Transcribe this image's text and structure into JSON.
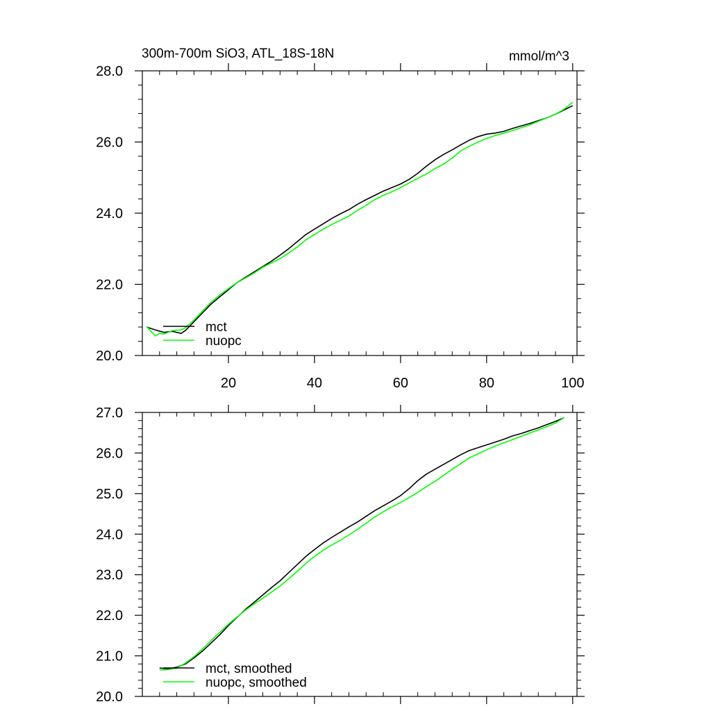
{
  "header": {
    "left_title": "300m-700m SiO3, ATL_18S-18N",
    "right_title": "mmol/m^3"
  },
  "colors": {
    "mct": "#000000",
    "nuopc": "#00ff00",
    "axes": "#000000"
  },
  "chart_data": [
    {
      "type": "line",
      "xlim": [
        0,
        101
      ],
      "ylim": [
        20.0,
        28.0
      ],
      "x_ticks": [
        20,
        40,
        60,
        80,
        100
      ],
      "x_tick_labels": [
        "20",
        "40",
        "60",
        "80",
        "100"
      ],
      "y_ticks": [
        20.0,
        22.0,
        24.0,
        26.0,
        28.0
      ],
      "y_tick_labels": [
        "20.0",
        "22.0",
        "24.0",
        "26.0",
        "28.0"
      ],
      "grid": false,
      "legend_placement": "bottom-left",
      "series": [
        {
          "name": "mct",
          "color": "#000000",
          "x": [
            1,
            3,
            5,
            7,
            9,
            10,
            12,
            14,
            16,
            18,
            20,
            22,
            24,
            26,
            28,
            30,
            32,
            34,
            36,
            38,
            40,
            42,
            44,
            46,
            48,
            50,
            52,
            54,
            56,
            58,
            60,
            62,
            64,
            66,
            68,
            70,
            72,
            74,
            76,
            78,
            80,
            82,
            84,
            86,
            88,
            90,
            92,
            94,
            96,
            98,
            100
          ],
          "y": [
            20.8,
            20.72,
            20.65,
            20.68,
            20.62,
            20.7,
            20.95,
            21.2,
            21.45,
            21.65,
            21.85,
            22.05,
            22.2,
            22.35,
            22.5,
            22.65,
            22.82,
            23.0,
            23.2,
            23.4,
            23.55,
            23.7,
            23.85,
            23.98,
            24.1,
            24.25,
            24.38,
            24.5,
            24.62,
            24.72,
            24.82,
            24.95,
            25.12,
            25.32,
            25.5,
            25.65,
            25.78,
            25.92,
            26.05,
            26.15,
            26.22,
            26.25,
            26.3,
            26.38,
            26.45,
            26.52,
            26.6,
            26.68,
            26.78,
            26.9,
            27.02
          ]
        },
        {
          "name": "nuopc",
          "color": "#00ff00",
          "x": [
            1,
            2,
            3,
            4,
            5,
            7,
            9,
            10,
            12,
            14,
            16,
            18,
            20,
            22,
            24,
            26,
            28,
            30,
            32,
            34,
            36,
            38,
            40,
            42,
            44,
            46,
            48,
            50,
            52,
            54,
            56,
            58,
            60,
            62,
            64,
            66,
            68,
            70,
            72,
            74,
            76,
            78,
            80,
            82,
            84,
            86,
            88,
            90,
            92,
            94,
            96,
            98,
            100
          ],
          "y": [
            20.82,
            20.68,
            20.55,
            20.62,
            20.6,
            20.7,
            20.72,
            20.78,
            21.0,
            21.25,
            21.5,
            21.7,
            21.88,
            22.05,
            22.18,
            22.32,
            22.48,
            22.6,
            22.72,
            22.88,
            23.05,
            23.25,
            23.4,
            23.55,
            23.68,
            23.8,
            23.92,
            24.08,
            24.22,
            24.38,
            24.5,
            24.6,
            24.72,
            24.85,
            24.98,
            25.1,
            25.25,
            25.38,
            25.55,
            25.75,
            25.88,
            26.0,
            26.1,
            26.18,
            26.25,
            26.32,
            26.4,
            26.48,
            26.58,
            26.68,
            26.78,
            26.92,
            27.12
          ]
        }
      ]
    },
    {
      "type": "line",
      "xlim": [
        0,
        101
      ],
      "ylim": [
        20.0,
        27.0
      ],
      "x_ticks": [
        20,
        40,
        60,
        80,
        100
      ],
      "x_tick_labels": [],
      "y_ticks": [
        20.0,
        21.0,
        22.0,
        23.0,
        24.0,
        25.0,
        26.0,
        27.0
      ],
      "y_tick_labels": [
        "20.0",
        "21.0",
        "22.0",
        "23.0",
        "24.0",
        "25.0",
        "26.0",
        "27.0"
      ],
      "grid": false,
      "legend_placement": "bottom-left",
      "series": [
        {
          "name": "mct, smoothed",
          "color": "#000000",
          "x": [
            4,
            6,
            8,
            10,
            12,
            14,
            16,
            18,
            20,
            22,
            24,
            26,
            28,
            30,
            32,
            34,
            36,
            38,
            40,
            42,
            44,
            46,
            48,
            50,
            52,
            54,
            56,
            58,
            60,
            62,
            64,
            66,
            68,
            70,
            72,
            74,
            76,
            78,
            80,
            82,
            84,
            86,
            88,
            90,
            92,
            94,
            96,
            98
          ],
          "y": [
            20.7,
            20.68,
            20.72,
            20.8,
            20.95,
            21.12,
            21.32,
            21.52,
            21.75,
            21.95,
            22.15,
            22.32,
            22.5,
            22.68,
            22.85,
            23.05,
            23.25,
            23.45,
            23.62,
            23.78,
            23.92,
            24.05,
            24.18,
            24.3,
            24.44,
            24.58,
            24.7,
            24.82,
            24.95,
            25.12,
            25.32,
            25.48,
            25.6,
            25.72,
            25.84,
            25.96,
            26.06,
            26.13,
            26.2,
            26.27,
            26.34,
            26.42,
            26.48,
            26.55,
            26.62,
            26.7,
            26.78,
            26.87
          ]
        },
        {
          "name": "nuopc, smoothed",
          "color": "#00ff00",
          "x": [
            4,
            6,
            8,
            10,
            12,
            14,
            16,
            18,
            20,
            22,
            24,
            26,
            28,
            30,
            32,
            34,
            36,
            38,
            40,
            42,
            44,
            46,
            48,
            50,
            52,
            54,
            56,
            58,
            60,
            62,
            64,
            66,
            68,
            70,
            72,
            74,
            76,
            78,
            80,
            82,
            84,
            86,
            88,
            90,
            92,
            94,
            96,
            98
          ],
          "y": [
            20.65,
            20.66,
            20.7,
            20.82,
            20.98,
            21.17,
            21.38,
            21.58,
            21.78,
            21.96,
            22.13,
            22.28,
            22.42,
            22.57,
            22.72,
            22.9,
            23.08,
            23.28,
            23.45,
            23.6,
            23.73,
            23.85,
            23.98,
            24.12,
            24.27,
            24.42,
            24.55,
            24.67,
            24.78,
            24.9,
            25.03,
            25.17,
            25.3,
            25.45,
            25.6,
            25.74,
            25.88,
            25.98,
            26.08,
            26.17,
            26.25,
            26.33,
            26.41,
            26.49,
            26.57,
            26.65,
            26.74,
            26.87
          ]
        }
      ]
    }
  ]
}
